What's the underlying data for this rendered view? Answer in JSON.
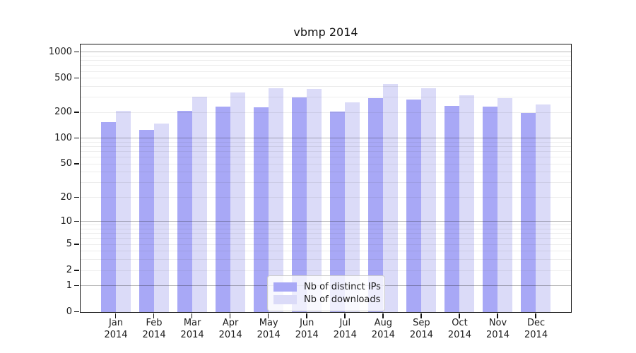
{
  "title": "vbmp 2014",
  "chart_data": {
    "type": "bar",
    "title": "vbmp 2014",
    "categories": [
      "Jan 2014",
      "Feb 2014",
      "Mar 2014",
      "Apr 2014",
      "May 2014",
      "Jun 2014",
      "Jul 2014",
      "Aug 2014",
      "Sep 2014",
      "Oct 2014",
      "Nov 2014",
      "Dec 2014"
    ],
    "x_tick_month": [
      "Jan",
      "Feb",
      "Mar",
      "Apr",
      "May",
      "Jun",
      "Jul",
      "Aug",
      "Sep",
      "Oct",
      "Nov",
      "Dec"
    ],
    "x_tick_year": "2014",
    "series": [
      {
        "name": "Nb of distinct IPs",
        "color": "#a8a8f6",
        "values": [
          155,
          126,
          211,
          237,
          233,
          304,
          209,
          298,
          286,
          240,
          235,
          200
        ]
      },
      {
        "name": "Nb of downloads",
        "color": "#dbdbf8",
        "values": [
          212,
          149,
          310,
          345,
          386,
          381,
          265,
          432,
          384,
          318,
          298,
          250
        ]
      }
    ],
    "yscale": "log1p",
    "yticks": [
      0,
      1,
      2,
      5,
      10,
      20,
      50,
      100,
      200,
      500,
      1000
    ],
    "ylim": [
      0,
      1216
    ],
    "grid": "major-and-minor",
    "legend_position": "lower-center",
    "colors": {
      "major_gridline": "#b7b7b7",
      "minor_gridline": "#e9e9e9",
      "spine": "#141414"
    }
  }
}
